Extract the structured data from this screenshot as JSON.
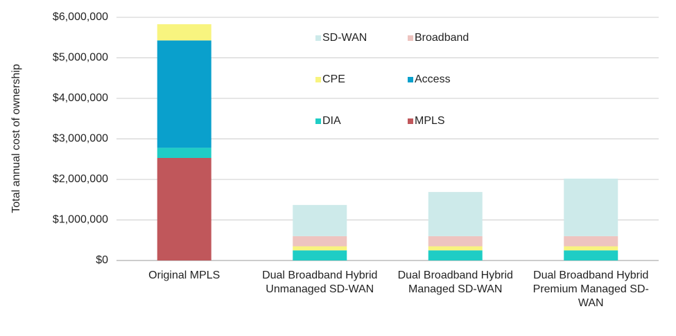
{
  "chart_data": {
    "type": "stacked-bar",
    "y_label": "Total annual cost of ownership",
    "categories": [
      "Original MPLS",
      "Dual Broadband Hybrid Unmanaged SD-WAN",
      "Dual Broadband Hybrid Managed SD-WAN",
      "Dual Broadband Hybrid Premium Managed SD-WAN"
    ],
    "series": [
      {
        "name": "MPLS",
        "color": "#c0575b",
        "values": [
          2530000,
          0,
          0,
          0
        ]
      },
      {
        "name": "DIA",
        "color": "#1fcdc5",
        "values": [
          250000,
          250000,
          250000,
          250000
        ]
      },
      {
        "name": "Access",
        "color": "#0aa0cc",
        "values": [
          2650000,
          0,
          0,
          0
        ]
      },
      {
        "name": "CPE",
        "color": "#f8f47f",
        "values": [
          400000,
          100000,
          100000,
          100000
        ]
      },
      {
        "name": "Broadband",
        "color": "#eec4c0",
        "values": [
          0,
          250000,
          250000,
          250000
        ]
      },
      {
        "name": "SD-WAN",
        "color": "#cdeaea",
        "values": [
          0,
          770000,
          1090000,
          1420000
        ]
      }
    ],
    "ylim": [
      0,
      6000000
    ],
    "yticks": [
      {
        "value": 0,
        "label": "$0"
      },
      {
        "value": 1000000,
        "label": "$1,000,000"
      },
      {
        "value": 2000000,
        "label": "$2,000,000"
      },
      {
        "value": 3000000,
        "label": "$3,000,000"
      },
      {
        "value": 4000000,
        "label": "$4,000,000"
      },
      {
        "value": 5000000,
        "label": "$5,000,000"
      },
      {
        "value": 6000000,
        "label": "$6,000,000"
      }
    ],
    "grid": true
  }
}
